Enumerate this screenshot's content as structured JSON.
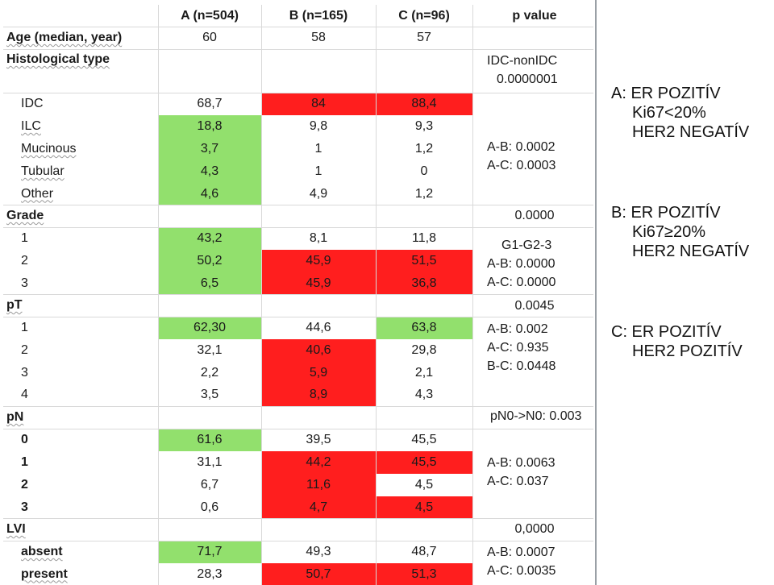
{
  "header": {
    "col1": "A (n=504)",
    "col2": "B (n=165)",
    "col3": "C (n=96)",
    "col4": "p value"
  },
  "rows": [
    {
      "label": "Age (median, year)",
      "a": "60",
      "b": "58",
      "c": "57"
    },
    {
      "label": "Histological type",
      "a": "",
      "b": "",
      "c": ""
    },
    {
      "label": "IDC",
      "a": "68,7",
      "b": "84",
      "c": "88,4"
    },
    {
      "label": "ILC",
      "a": "18,8",
      "b": "9,8",
      "c": "9,3"
    },
    {
      "label": "Mucinous",
      "a": "3,7",
      "b": "1",
      "c": "1,2"
    },
    {
      "label": "Tubular",
      "a": "4,3",
      "b": "1",
      "c": "0"
    },
    {
      "label": "Other",
      "a": "4,6",
      "b": "4,9",
      "c": "1,2"
    },
    {
      "label": "Grade",
      "a": "",
      "b": "",
      "c": ""
    },
    {
      "label": "1",
      "a": "43,2",
      "b": "8,1",
      "c": "11,8"
    },
    {
      "label": "2",
      "a": "50,2",
      "b": "45,9",
      "c": "51,5"
    },
    {
      "label": "3",
      "a": "6,5",
      "b": "45,9",
      "c": "36,8"
    },
    {
      "label": "pT",
      "a": "",
      "b": "",
      "c": ""
    },
    {
      "label": "1",
      "a": "62,30",
      "b": "44,6",
      "c": "63,8"
    },
    {
      "label": "2",
      "a": "32,1",
      "b": "40,6",
      "c": "29,8"
    },
    {
      "label": "3",
      "a": "2,2",
      "b": "5,9",
      "c": "2,1"
    },
    {
      "label": "4",
      "a": "3,5",
      "b": "8,9",
      "c": "4,3"
    },
    {
      "label": "pN",
      "a": "",
      "b": "",
      "c": ""
    },
    {
      "label": "0",
      "a": "61,6",
      "b": "39,5",
      "c": "45,5"
    },
    {
      "label": "1",
      "a": "31,1",
      "b": "44,2",
      "c": "45,5"
    },
    {
      "label": "2",
      "a": "6,7",
      "b": "11,6",
      "c": "4,5"
    },
    {
      "label": "3",
      "a": "0,6",
      "b": "4,7",
      "c": "4,5"
    },
    {
      "label": "LVI",
      "a": "",
      "b": "",
      "c": ""
    },
    {
      "label": "absent",
      "a": "71,7",
      "b": "49,3",
      "c": "48,7"
    },
    {
      "label": "present",
      "a": "28,3",
      "b": "50,7",
      "c": "51,3"
    }
  ],
  "pvalues": {
    "histo": [
      "IDC-nonIDC",
      "0.0000001"
    ],
    "histo_pair": [
      "A-B: 0.0002",
      "A-C: 0.0003"
    ],
    "grade": [
      "0.0000"
    ],
    "grade_pair": [
      "G1-G2-3",
      "A-B: 0.0000",
      "A-C: 0.0000"
    ],
    "pt": [
      "0.0045"
    ],
    "pt_pair": [
      "A-B: 0.002",
      "A-C: 0.935",
      "B-C: 0.0448"
    ],
    "pn": [
      "pN0->N0: 0.003"
    ],
    "pn_pair": [
      "A-B: 0.0063",
      "A-C: 0.037"
    ],
    "lvi": [
      "0,0000",
      "A-B: 0.0007",
      "A-C: 0.0035"
    ]
  },
  "legend": {
    "a": [
      "A: ER POZITÍV",
      "Ki67<20%",
      "HER2 NEGATÍV"
    ],
    "b": [
      "B: ER POZITÍV",
      "Ki67≥20%",
      "HER2 NEGATÍV"
    ],
    "c": [
      "C: ER POZITÍV",
      "HER2 POZITÍV"
    ]
  },
  "colors": {
    "green": "#92e06d",
    "red": "#ff1e1e"
  }
}
